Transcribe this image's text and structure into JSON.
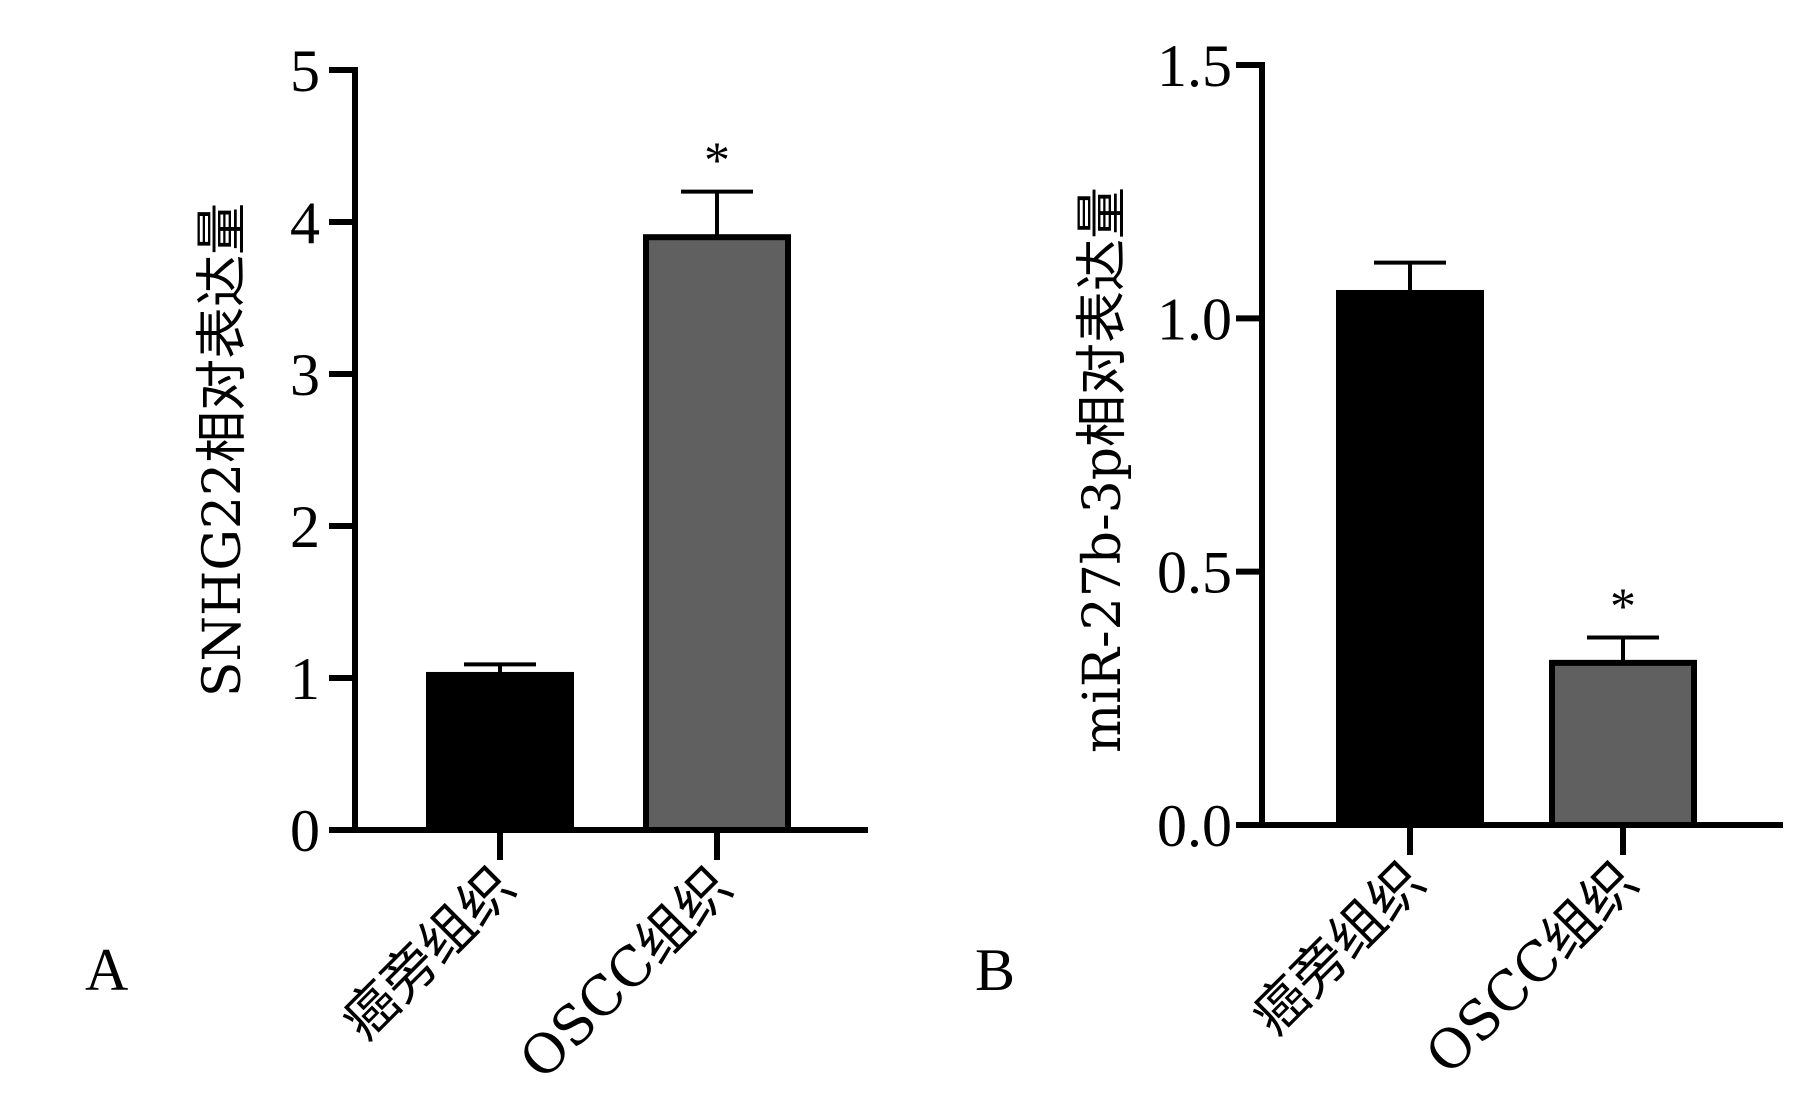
{
  "chart_data": [
    {
      "type": "bar",
      "panel_label": "A",
      "title": "",
      "ylabel": "SNHG22相对表达量",
      "xlabel": "",
      "ylim": [
        0,
        5
      ],
      "yticks": [
        "0",
        "1",
        "2",
        "3",
        "4",
        "5"
      ],
      "categories": [
        "癌旁组织",
        "OSCC组织"
      ],
      "values": [
        1.02,
        3.9
      ],
      "errors": [
        0.07,
        0.3
      ],
      "annotations": [
        "",
        "*"
      ],
      "bar_colors": [
        "#000000",
        "#606060"
      ]
    },
    {
      "type": "bar",
      "panel_label": "B",
      "title": "",
      "ylabel": "miR-27b-3p相对表达量",
      "xlabel": "",
      "ylim": [
        0,
        1.5
      ],
      "yticks": [
        "0.0",
        "0.5",
        "1.0",
        "1.5"
      ],
      "categories": [
        "癌旁组织",
        "OSCC组织"
      ],
      "values": [
        1.05,
        0.32
      ],
      "errors": [
        0.06,
        0.05
      ],
      "annotations": [
        "",
        "*"
      ],
      "bar_colors": [
        "#000000",
        "#606060"
      ]
    }
  ]
}
